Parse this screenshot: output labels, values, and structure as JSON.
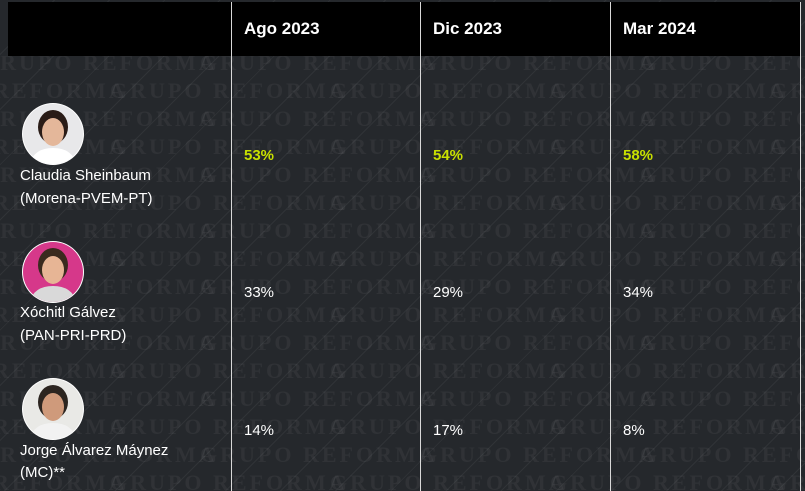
{
  "watermark": "GRUPO REFORMA",
  "table": {
    "columns": [
      "Ago 2023",
      "Dic 2023",
      "Mar 2024"
    ],
    "rows": [
      {
        "name": "Claudia Sheinbaum",
        "party": "(Morena-PVEM-PT)",
        "values": [
          "53%",
          "54%",
          "58%"
        ],
        "highlight": true
      },
      {
        "name": "Xóchitl Gálvez",
        "party": "(PAN-PRI-PRD)",
        "values": [
          "33%",
          "29%",
          "34%"
        ],
        "highlight": false
      },
      {
        "name": "Jorge Álvarez Máynez",
        "party": "(MC)**",
        "values": [
          "14%",
          "17%",
          "8%"
        ],
        "highlight": false
      }
    ]
  }
}
